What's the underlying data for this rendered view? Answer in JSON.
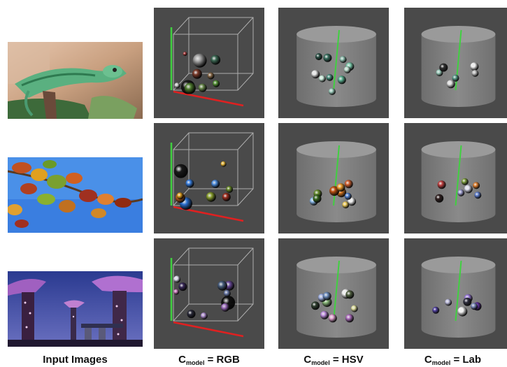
{
  "captions": {
    "input": "Input Images",
    "c_symbol": "C",
    "subscript": "model",
    "rgb": "= RGB",
    "hsv": "= HSV",
    "lab": "= Lab"
  },
  "rows": [
    {
      "image": "chameleon"
    },
    {
      "image": "autumn-leaves"
    },
    {
      "image": "supertrees"
    }
  ],
  "colors": {
    "panel_bg": "#4a4a4a",
    "axis_green": "#40d040",
    "axis_red": "#e02020",
    "frame": "#c8c8c8"
  },
  "clusters": {
    "rgb_chameleon": [
      [
        "#1a1a1a",
        10
      ],
      [
        "#7a3a2a",
        7
      ],
      [
        "#4f7c2f",
        8
      ],
      [
        "#a0a0a0",
        10
      ],
      [
        "#6e8f50",
        6
      ],
      [
        "#3d6a55",
        7
      ],
      [
        "#8a6b4a",
        5
      ],
      [
        "#d0d0d0",
        4
      ],
      [
        "#5a9a3a",
        5
      ],
      [
        "#b04040",
        3
      ]
    ],
    "rgb_leaves": [
      [
        "#1a1a1a",
        10
      ],
      [
        "#2b6fd0",
        9
      ],
      [
        "#c06020",
        7
      ],
      [
        "#8aa030",
        7
      ],
      [
        "#3a80e0",
        6
      ],
      [
        "#a03020",
        6
      ],
      [
        "#e0a020",
        5
      ],
      [
        "#6a8c2a",
        5
      ],
      [
        "#f0c040",
        4
      ],
      [
        "#5090e0",
        6
      ]
    ],
    "rgb_trees": [
      [
        "#101010",
        10
      ],
      [
        "#6a4a9a",
        7
      ],
      [
        "#a070c0",
        6
      ],
      [
        "#4a6080",
        7
      ],
      [
        "#e0e0f0",
        5
      ],
      [
        "#3a2a5a",
        6
      ],
      [
        "#b090d0",
        5
      ],
      [
        "#7080b0",
        5
      ],
      [
        "#d080c0",
        4
      ],
      [
        "#2a2a3a",
        6
      ]
    ],
    "hsv_chameleon": [
      [
        "#e8e8e8",
        6
      ],
      [
        "#7fd0b0",
        6
      ],
      [
        "#5ab090",
        6
      ],
      [
        "#a0d0c0",
        5
      ],
      [
        "#3a7060",
        6
      ],
      [
        "#c0e0d0",
        5
      ],
      [
        "#4a9080",
        5
      ],
      [
        "#2a5045",
        5
      ],
      [
        "#90c0b0",
        5
      ],
      [
        "#d0f0e0",
        5
      ]
    ],
    "hsv_leaves": [
      [
        "#f0f0f0",
        6
      ],
      [
        "#e07a20",
        7
      ],
      [
        "#c05010",
        7
      ],
      [
        "#f0a030",
        6
      ],
      [
        "#6a9030",
        6
      ],
      [
        "#90c0f0",
        6
      ],
      [
        "#5080d0",
        5
      ],
      [
        "#3a6a20",
        6
      ],
      [
        "#d06030",
        6
      ],
      [
        "#f0d060",
        5
      ]
    ],
    "hsv_trees": [
      [
        "#f0f0f0",
        7
      ],
      [
        "#e0a0d0",
        6
      ],
      [
        "#90c080",
        7
      ],
      [
        "#b070c0",
        6
      ],
      [
        "#506040",
        6
      ],
      [
        "#a0b0e0",
        6
      ],
      [
        "#c090e0",
        6
      ],
      [
        "#304030",
        6
      ],
      [
        "#e0e0a0",
        5
      ],
      [
        "#7090c0",
        6
      ]
    ],
    "lab_chameleon": [
      [
        "#f0f0f0",
        6
      ],
      [
        "#e0e0e0",
        6
      ],
      [
        "#a0d0c0",
        5
      ],
      [
        "#60a090",
        5
      ],
      [
        "#303030",
        6
      ],
      [
        "#c0c0c0",
        5
      ]
    ],
    "lab_leaves": [
      [
        "#e0e0f0",
        6
      ],
      [
        "#c04040",
        6
      ],
      [
        "#e08030",
        5
      ],
      [
        "#80a040",
        5
      ],
      [
        "#6080d0",
        5
      ],
      [
        "#302020",
        6
      ],
      [
        "#a0a0d0",
        5
      ]
    ],
    "lab_trees": [
      [
        "#f0f0f0",
        7
      ],
      [
        "#6030a0",
        6
      ],
      [
        "#a080e0",
        6
      ],
      [
        "#8090c0",
        5
      ],
      [
        "#303040",
        6
      ],
      [
        "#c0c0e0",
        5
      ],
      [
        "#5040a0",
        5
      ]
    ]
  }
}
